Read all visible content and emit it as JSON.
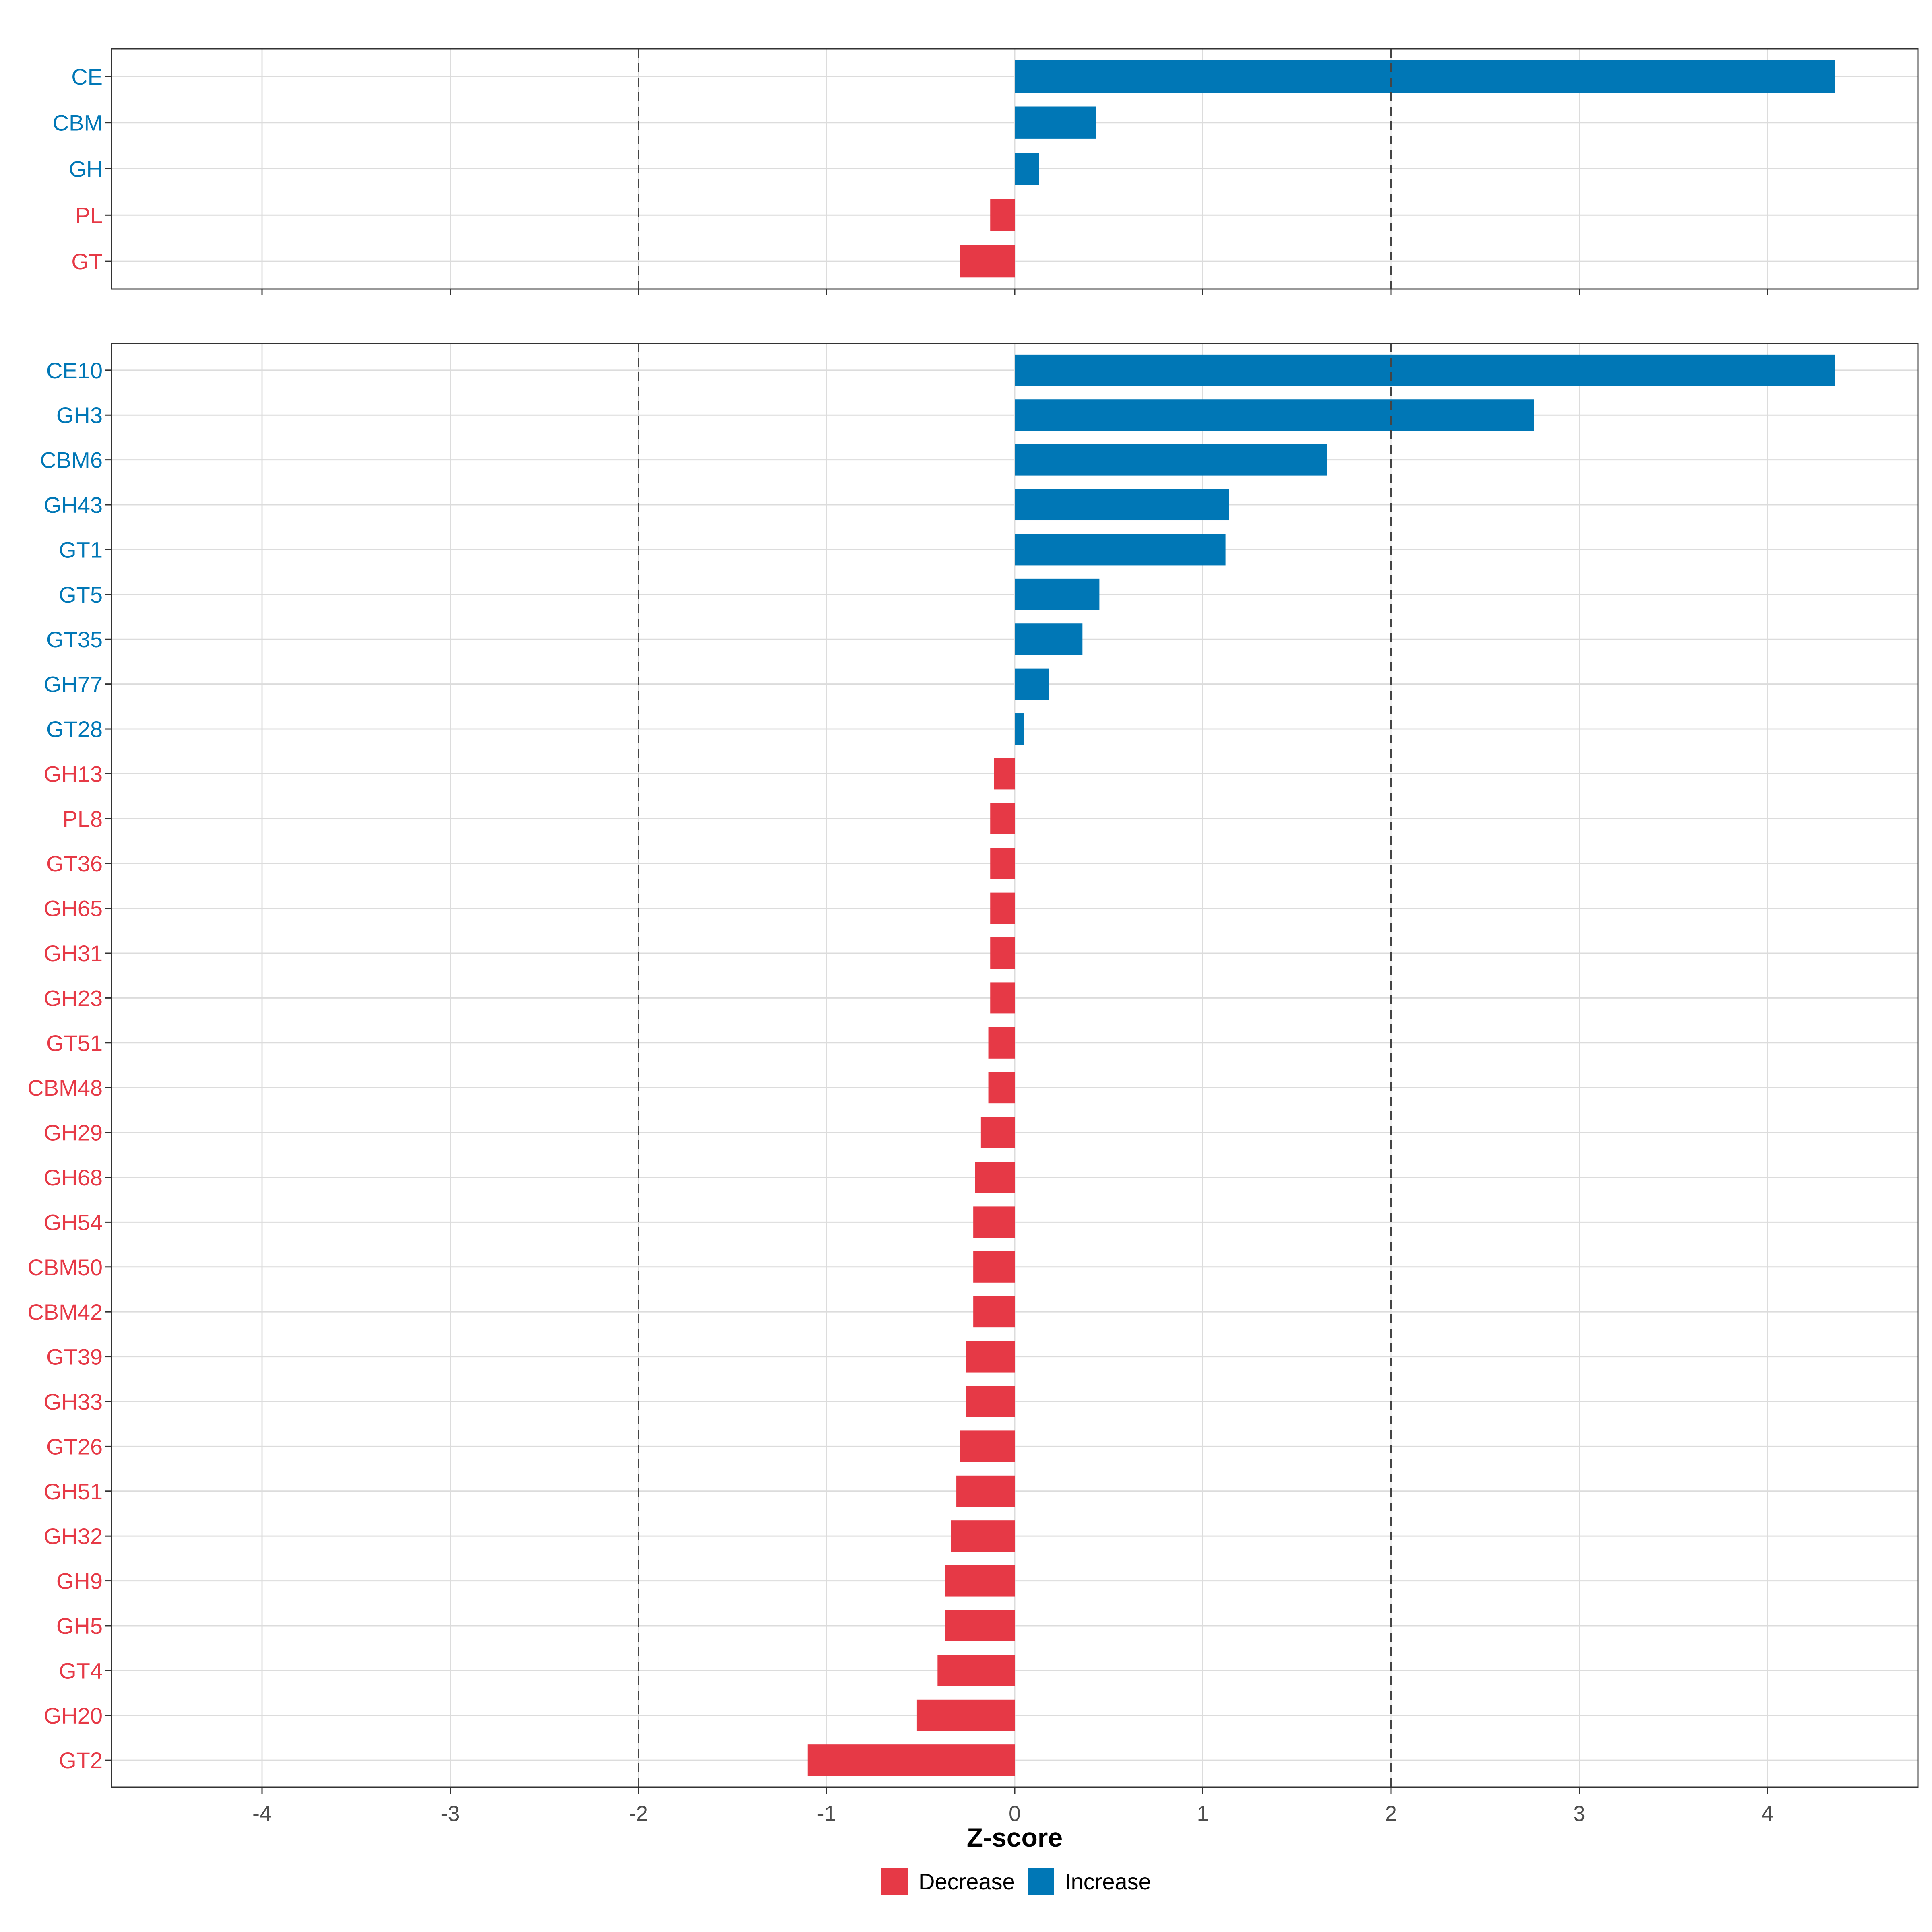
{
  "chart_data": [
    {
      "type": "bar",
      "orientation": "horizontal",
      "panel": "category",
      "categories": [
        "CE",
        "CBM",
        "GH",
        "PL",
        "GT"
      ],
      "values": [
        4.36,
        0.43,
        0.13,
        -0.13,
        -0.29
      ],
      "directions": [
        "Increase",
        "Increase",
        "Increase",
        "Decrease",
        "Decrease"
      ],
      "xlim": [
        -4.8,
        4.8
      ],
      "reference_lines": [
        -2,
        2
      ],
      "grid": true
    },
    {
      "type": "bar",
      "orientation": "horizontal",
      "panel": "family",
      "categories": [
        "CE10",
        "GH3",
        "CBM6",
        "GH43",
        "GT1",
        "GT5",
        "GT35",
        "GH77",
        "GT28",
        "GH13",
        "PL8",
        "GT36",
        "GH65",
        "GH31",
        "GH23",
        "GT51",
        "CBM48",
        "GH29",
        "GH68",
        "GH54",
        "CBM50",
        "CBM42",
        "GT39",
        "GH33",
        "GT26",
        "GH51",
        "GH32",
        "GH9",
        "GH5",
        "GT4",
        "GH20",
        "GT2"
      ],
      "values": [
        4.36,
        2.76,
        1.66,
        1.14,
        1.12,
        0.45,
        0.36,
        0.18,
        0.05,
        -0.11,
        -0.13,
        -0.13,
        -0.13,
        -0.13,
        -0.13,
        -0.14,
        -0.14,
        -0.18,
        -0.21,
        -0.22,
        -0.22,
        -0.22,
        -0.26,
        -0.26,
        -0.29,
        -0.31,
        -0.34,
        -0.37,
        -0.37,
        -0.41,
        -0.52,
        -1.1
      ],
      "directions": [
        "Increase",
        "Increase",
        "Increase",
        "Increase",
        "Increase",
        "Increase",
        "Increase",
        "Increase",
        "Increase",
        "Decrease",
        "Decrease",
        "Decrease",
        "Decrease",
        "Decrease",
        "Decrease",
        "Decrease",
        "Decrease",
        "Decrease",
        "Decrease",
        "Decrease",
        "Decrease",
        "Decrease",
        "Decrease",
        "Decrease",
        "Decrease",
        "Decrease",
        "Decrease",
        "Decrease",
        "Decrease",
        "Decrease",
        "Decrease",
        "Decrease"
      ],
      "xlim": [
        -4.8,
        4.8
      ],
      "reference_lines": [
        -2,
        2
      ],
      "grid": true
    }
  ],
  "x_axis": {
    "title": "Z-score",
    "ticks": [
      -4,
      -3,
      -2,
      -1,
      0,
      1,
      2,
      3,
      4
    ],
    "tick_labels": [
      "-4",
      "-3",
      "-2",
      "-1",
      "0",
      "1",
      "2",
      "3",
      "4"
    ]
  },
  "legend": {
    "placement": "bottom",
    "items": [
      {
        "key": "Decrease",
        "label": "Decrease",
        "color": "#E63946"
      },
      {
        "key": "Increase",
        "label": "Increase",
        "color": "#0077B6"
      }
    ]
  },
  "colors": {
    "increase": "#0077B6",
    "decrease": "#E63946",
    "grid": "#DCDCDC",
    "panel_border": "#333333",
    "reference_line": "#444444",
    "tick_text": "#4D4D4D",
    "title_text": "#000000"
  }
}
